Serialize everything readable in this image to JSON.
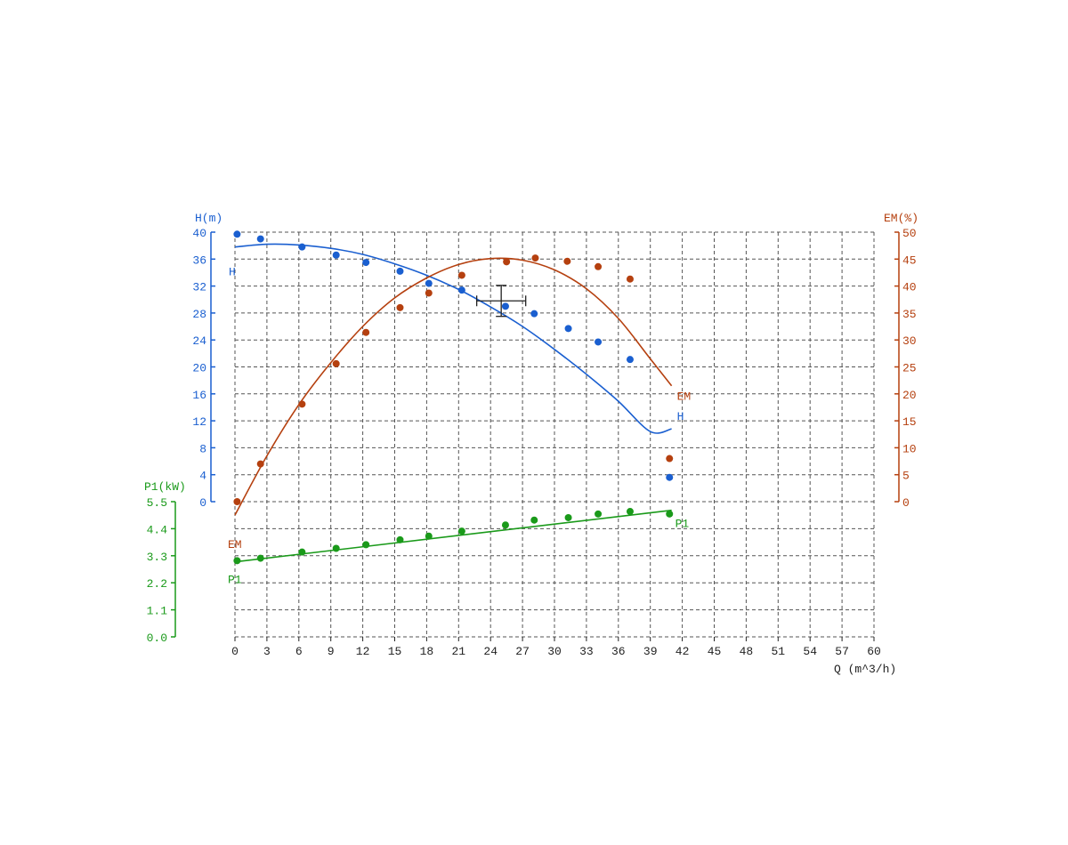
{
  "chart_data": {
    "type": "scatter",
    "x_axis": {
      "label": "Q (m^3/h)",
      "range": [
        0,
        60
      ],
      "ticks": [
        "0",
        "3",
        "6",
        "9",
        "12",
        "15",
        "18",
        "21",
        "24",
        "27",
        "30",
        "33",
        "36",
        "39",
        "42",
        "45",
        "48",
        "51",
        "54",
        "57",
        "60"
      ]
    },
    "y_axes": {
      "head": {
        "label": "H(m)",
        "range": [
          0,
          40
        ],
        "ticks": [
          "0",
          "4",
          "8",
          "12",
          "16",
          "20",
          "24",
          "28",
          "32",
          "36",
          "40"
        ]
      },
      "efficiency": {
        "label": "EM(%)",
        "range": [
          0,
          50
        ],
        "ticks": [
          "0",
          "5",
          "10",
          "15",
          "20",
          "25",
          "30",
          "35",
          "40",
          "45",
          "50"
        ]
      },
      "power": {
        "label": "P1(kW)",
        "range": [
          0,
          5.5
        ],
        "ticks": [
          "0.0",
          "1.1",
          "2.2",
          "3.3",
          "4.4",
          "5.5"
        ]
      }
    },
    "grid": true,
    "series": [
      {
        "name": "H",
        "axis": "head",
        "color": "#1a5fd0",
        "points": [
          [
            0.2,
            39.7
          ],
          [
            2.4,
            39.0
          ],
          [
            6.3,
            37.8
          ],
          [
            9.5,
            36.6
          ],
          [
            12.3,
            35.5
          ],
          [
            15.5,
            34.2
          ],
          [
            18.2,
            32.4
          ],
          [
            21.3,
            31.4
          ],
          [
            25.4,
            29.0
          ],
          [
            28.1,
            27.9
          ],
          [
            31.3,
            25.7
          ],
          [
            34.1,
            23.7
          ],
          [
            37.1,
            21.1
          ],
          [
            40.8,
            3.6
          ]
        ],
        "fit_curve": [
          [
            0,
            37.8
          ],
          [
            3,
            38.2
          ],
          [
            6,
            38.1
          ],
          [
            9,
            37.6
          ],
          [
            12,
            36.7
          ],
          [
            15,
            35.3
          ],
          [
            18,
            33.6
          ],
          [
            21,
            31.5
          ],
          [
            24,
            28.9
          ],
          [
            27,
            26.0
          ],
          [
            30,
            22.6
          ],
          [
            33,
            18.9
          ],
          [
            36,
            14.9
          ],
          [
            39,
            10.4
          ],
          [
            41,
            10.8
          ]
        ],
        "curve_labels": [
          "H",
          "H"
        ]
      },
      {
        "name": "EM",
        "axis": "efficiency",
        "color": "#b5400f",
        "points": [
          [
            0.2,
            0.0
          ],
          [
            2.4,
            7.0
          ],
          [
            6.3,
            18.1
          ],
          [
            9.5,
            25.6
          ],
          [
            12.3,
            31.4
          ],
          [
            15.5,
            36.0
          ],
          [
            18.2,
            38.7
          ],
          [
            21.3,
            42.0
          ],
          [
            25.5,
            44.5
          ],
          [
            28.2,
            45.2
          ],
          [
            31.2,
            44.6
          ],
          [
            34.1,
            43.6
          ],
          [
            37.1,
            41.3
          ],
          [
            40.8,
            8.0
          ]
        ],
        "fit_curve": [
          [
            0,
            -2.5
          ],
          [
            3,
            8.5
          ],
          [
            6,
            18.0
          ],
          [
            9,
            25.8
          ],
          [
            12,
            32.5
          ],
          [
            15,
            37.8
          ],
          [
            18,
            41.5
          ],
          [
            21,
            44.0
          ],
          [
            24,
            45.1
          ],
          [
            27,
            44.8
          ],
          [
            30,
            43.0
          ],
          [
            33,
            39.5
          ],
          [
            36,
            34.0
          ],
          [
            39,
            26.5
          ],
          [
            41,
            21.5
          ]
        ],
        "curve_labels": [
          "EM",
          "EM"
        ]
      },
      {
        "name": "P1",
        "axis": "power",
        "color": "#1a9a1a",
        "points": [
          [
            0.2,
            3.1
          ],
          [
            2.4,
            3.2
          ],
          [
            6.3,
            3.45
          ],
          [
            9.5,
            3.6
          ],
          [
            12.3,
            3.75
          ],
          [
            15.5,
            3.95
          ],
          [
            18.2,
            4.1
          ],
          [
            21.3,
            4.3
          ],
          [
            25.4,
            4.55
          ],
          [
            28.1,
            4.75
          ],
          [
            31.3,
            4.85
          ],
          [
            34.1,
            5.0
          ],
          [
            37.1,
            5.1
          ],
          [
            40.8,
            5.0
          ]
        ],
        "fit_curve": [
          [
            0,
            3.05
          ],
          [
            41,
            5.15
          ]
        ],
        "curve_labels": [
          "P1",
          "P1"
        ]
      }
    ],
    "duty_point": {
      "q": 25,
      "h": 29.8,
      "q_err": 2.3,
      "h_err": 2.3
    }
  }
}
